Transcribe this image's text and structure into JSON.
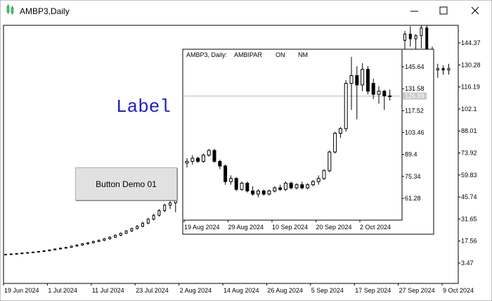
{
  "window": {
    "title": "AMBP3,Daily"
  },
  "label": {
    "text": "Label"
  },
  "button": {
    "text": "Button Demo 01"
  },
  "main_chart": {
    "yticks": [
      144.37,
      130.28,
      116.19,
      102.1,
      88.01,
      73.92,
      59.83,
      45.74,
      31.65,
      17.56,
      3.47
    ],
    "xticks": [
      "19 Jun 2024",
      "1 Jul 2024",
      "11 Jul 2024",
      "23 Jul 2024",
      "2 Aug 2024",
      "14 Aug 2024",
      "26 Aug 2024",
      "5 Sep 2024",
      "17 Sep 2024",
      "27 Sep 2024",
      "9 Oct 2024"
    ],
    "candles_left": [
      [
        9,
        9.4,
        8.6,
        9.1
      ],
      [
        9.1,
        9.5,
        8.8,
        9.3
      ],
      [
        9.3,
        9.8,
        9,
        9.6
      ],
      [
        9.6,
        10.1,
        9.3,
        9.9
      ],
      [
        9.9,
        10.4,
        9.6,
        10.2
      ],
      [
        10.2,
        10.7,
        9.9,
        10.5
      ],
      [
        10.5,
        11.1,
        10.2,
        10.9
      ],
      [
        10.9,
        11.5,
        10.6,
        11.3
      ],
      [
        11.3,
        12.1,
        11,
        11.9
      ],
      [
        11.9,
        12.7,
        11.6,
        12.5
      ],
      [
        12.5,
        13.3,
        12.1,
        13
      ],
      [
        13,
        13.8,
        12.6,
        13.5
      ],
      [
        13.5,
        14.6,
        13.1,
        14.3
      ],
      [
        14.3,
        15.4,
        13.9,
        15
      ],
      [
        15,
        16.2,
        14.5,
        15.8
      ],
      [
        15.8,
        16.9,
        15.2,
        16.4
      ],
      [
        16.4,
        17.8,
        16,
        17.3
      ],
      [
        17.3,
        18.5,
        16.8,
        18
      ],
      [
        18,
        19.5,
        17.5,
        19
      ],
      [
        19,
        20.6,
        18.4,
        20
      ],
      [
        20,
        21.8,
        19.5,
        21.2
      ],
      [
        21.2,
        23,
        20.6,
        22.5
      ],
      [
        22.5,
        24.6,
        22,
        24
      ],
      [
        24,
        26.1,
        23.3,
        25.5
      ],
      [
        25.5,
        27.8,
        25,
        27
      ],
      [
        27,
        29.8,
        26.4,
        29
      ],
      [
        29,
        32.4,
        28.3,
        31.5
      ],
      [
        31.5,
        35,
        30.8,
        34
      ],
      [
        34,
        38,
        33.2,
        37
      ],
      [
        37,
        41.5,
        36,
        40.5
      ],
      [
        40.5,
        44,
        38,
        42
      ],
      [
        42,
        46,
        36,
        44
      ]
    ],
    "candles_right": [
      [
        146,
        152,
        140,
        150
      ],
      [
        150,
        155,
        142,
        147
      ],
      [
        147,
        150,
        138,
        149
      ],
      [
        149,
        156,
        141,
        154
      ],
      [
        154,
        158,
        135,
        140
      ],
      [
        140,
        142,
        118,
        127
      ],
      [
        127,
        131,
        122,
        128
      ],
      [
        128,
        130,
        124,
        127
      ],
      [
        127,
        131,
        124,
        128
      ]
    ]
  },
  "inner_chart": {
    "title": [
      "AMBP3, Daily:",
      "AMBIPAR",
      "ON",
      "NM"
    ],
    "yticks": [
      145.64,
      131.58,
      117.52,
      103.46,
      89.4,
      75.34,
      61.28
    ],
    "xticks": [
      "19 Aug 2024",
      "29 Aug 2024",
      "10 Sep 2024",
      "20 Sep 2024",
      "2 Oct 2024"
    ],
    "price": 126.89,
    "candles": [
      [
        84,
        87,
        81,
        85
      ],
      [
        85,
        89,
        83,
        87
      ],
      [
        87,
        88,
        84,
        85
      ],
      [
        85,
        90,
        84,
        89
      ],
      [
        89,
        93,
        88,
        92
      ],
      [
        92,
        93,
        84,
        85
      ],
      [
        85,
        86,
        80,
        82
      ],
      [
        82,
        83,
        70,
        72
      ],
      [
        72,
        76,
        70,
        74
      ],
      [
        74,
        75,
        66,
        67
      ],
      [
        67,
        72,
        66,
        71
      ],
      [
        71,
        72,
        65,
        66
      ],
      [
        66,
        69,
        63,
        64
      ],
      [
        64,
        67,
        62,
        66
      ],
      [
        66,
        67,
        63,
        64
      ],
      [
        64,
        67,
        63,
        66
      ],
      [
        66,
        69,
        65,
        68
      ],
      [
        68,
        70,
        66,
        67
      ],
      [
        67,
        72,
        66,
        71
      ],
      [
        71,
        72,
        67,
        68
      ],
      [
        68,
        71,
        67,
        70
      ],
      [
        70,
        72,
        67,
        68
      ],
      [
        68,
        71,
        67,
        70
      ],
      [
        70,
        73,
        69,
        72
      ],
      [
        72,
        76,
        70,
        74
      ],
      [
        74,
        80,
        73,
        79
      ],
      [
        79,
        92,
        78,
        91
      ],
      [
        91,
        104,
        90,
        103
      ],
      [
        103,
        107,
        100,
        106
      ],
      [
        106,
        137,
        104,
        135
      ],
      [
        135,
        152,
        118,
        140
      ],
      [
        140,
        146,
        112,
        134
      ],
      [
        134,
        148,
        130,
        144
      ],
      [
        144,
        146,
        128,
        130
      ],
      [
        135,
        138,
        125,
        128
      ],
      [
        128,
        133,
        122,
        130
      ],
      [
        130,
        131,
        118,
        127
      ],
      [
        127,
        131,
        124,
        127
      ]
    ]
  }
}
